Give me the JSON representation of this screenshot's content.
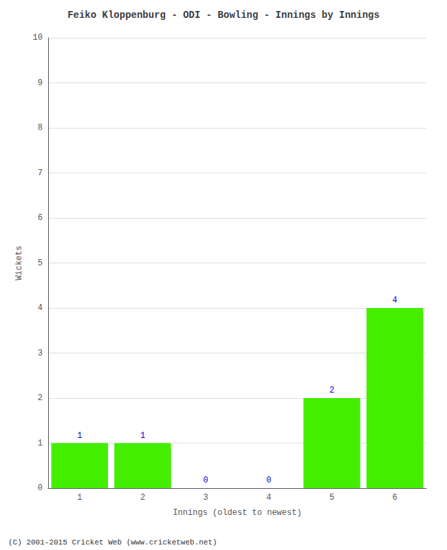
{
  "chart_data": {
    "type": "bar",
    "title": "Feiko Kloppenburg - ODI - Bowling - Innings by Innings",
    "x_label": "Innings (oldest to newest)",
    "y_label": "Wickets",
    "categories": [
      "1",
      "2",
      "3",
      "4",
      "5",
      "6"
    ],
    "values": [
      1,
      1,
      0,
      0,
      2,
      4
    ],
    "color": "#44ee00",
    "ylim": [
      0,
      10
    ],
    "yticks": [
      0,
      1,
      2,
      3,
      4,
      5,
      6,
      7,
      8,
      9,
      10
    ],
    "grid": true,
    "data_labels": true,
    "annotations": [
      "(C) 2001-2015 Cricket Web (www.cricketweb.net)"
    ]
  }
}
